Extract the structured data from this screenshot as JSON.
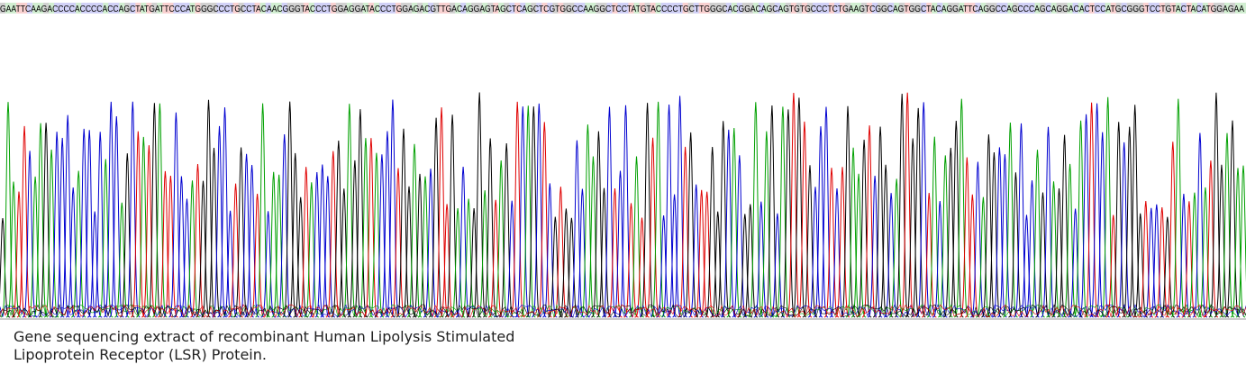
{
  "sequence": "GAATTCAAGACCCCACCCCACCAGCTATGATTCCCATGGGCCCTGCCTACAACGGGTACCCTGGAGGATACCCTGGAGACGTTGACAGGAGTAGCTCAGCTCGTGGCCAAGGCTCCTATGTACCCCTGCTTGGGCACGGACAGCAGTGTGCCCTCTGAAGTCGGCAGTGGCTACAGGATTCAGGCCAGCCCAGCAGGACACTCCATGCGGGTCCTGTACTACATGGAGAA",
  "caption": "Gene sequencing extract of recombinant Human Lipolysis Stimulated Lipoprotein Receptor (LSR) Protein."
}
